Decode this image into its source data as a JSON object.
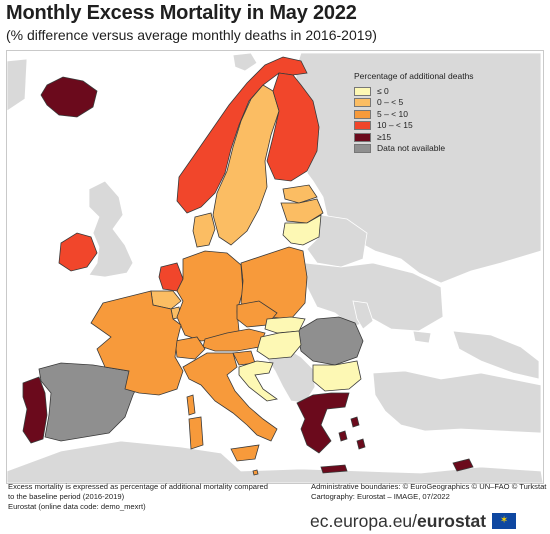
{
  "title": "Monthly Excess Mortality in May 2022",
  "subtitle": "(% difference versus average monthly deaths in 2016-2019)",
  "legend": {
    "title": "Percentage of additional deaths",
    "items": [
      {
        "label": "≤ 0",
        "color": "#fdf8b4"
      },
      {
        "label": "0 – < 5",
        "color": "#fbbd63"
      },
      {
        "label": "5 – < 10",
        "color": "#f79a3b"
      },
      {
        "label": "10 – < 15",
        "color": "#f1462b"
      },
      {
        "label": "≥15",
        "color": "#6b0a1c"
      },
      {
        "label": "Data not available",
        "color": "#8f8f8f"
      }
    ]
  },
  "colors": {
    "sea": "#ffffff",
    "non_eu_land": "#d9d9d9",
    "no_data": "#8f8f8f",
    "border": "#3a3a3a"
  },
  "regions": {
    "iceland": "≥15",
    "norway": "10 – < 15",
    "sweden": "0 – < 5",
    "finland": "10 – < 15",
    "estonia": "0 – < 5",
    "latvia": "0 – < 5",
    "lithuania": "≤ 0",
    "denmark": "0 – < 5",
    "ireland": "10 – < 15",
    "netherlands": "10 – < 15",
    "belgium": "0 – < 5",
    "luxembourg": "0 – < 5",
    "germany": "5 – < 10",
    "poland": "5 – < 10",
    "czechia": "5 – < 10",
    "slovakia": "≤ 0",
    "austria": "5 – < 10",
    "switzerland": "5 – < 10",
    "liechtenstein": "5 – < 10",
    "hungary": "≤ 0",
    "slovenia": "5 – < 10",
    "croatia": "≤ 0",
    "france": "5 – < 10",
    "italy": "5 – < 10",
    "malta": "5 – < 10",
    "spain": "Data not available",
    "portugal": "≥15",
    "romania": "Data not available",
    "bulgaria": "≤ 0",
    "greece": "≥15",
    "cyprus": "≥15"
  },
  "notes": {
    "left_line1": "Excess mortality is expressed as percentage of additional mortality compared",
    "left_line2": "to the baseline period (2016-2019)",
    "left_line3": "Eurostat (online data code: demo_mexrt)",
    "right_line1": "Administrative boundaries: © EuroGeographics © UN–FAO © Turkstat",
    "right_line2": "Cartography: Eurostat – IMAGE, 07/2022"
  },
  "footer": {
    "url": "ec.europa.eu/",
    "brand": "eurostat",
    "flag_icon": "eu-flag-icon"
  }
}
